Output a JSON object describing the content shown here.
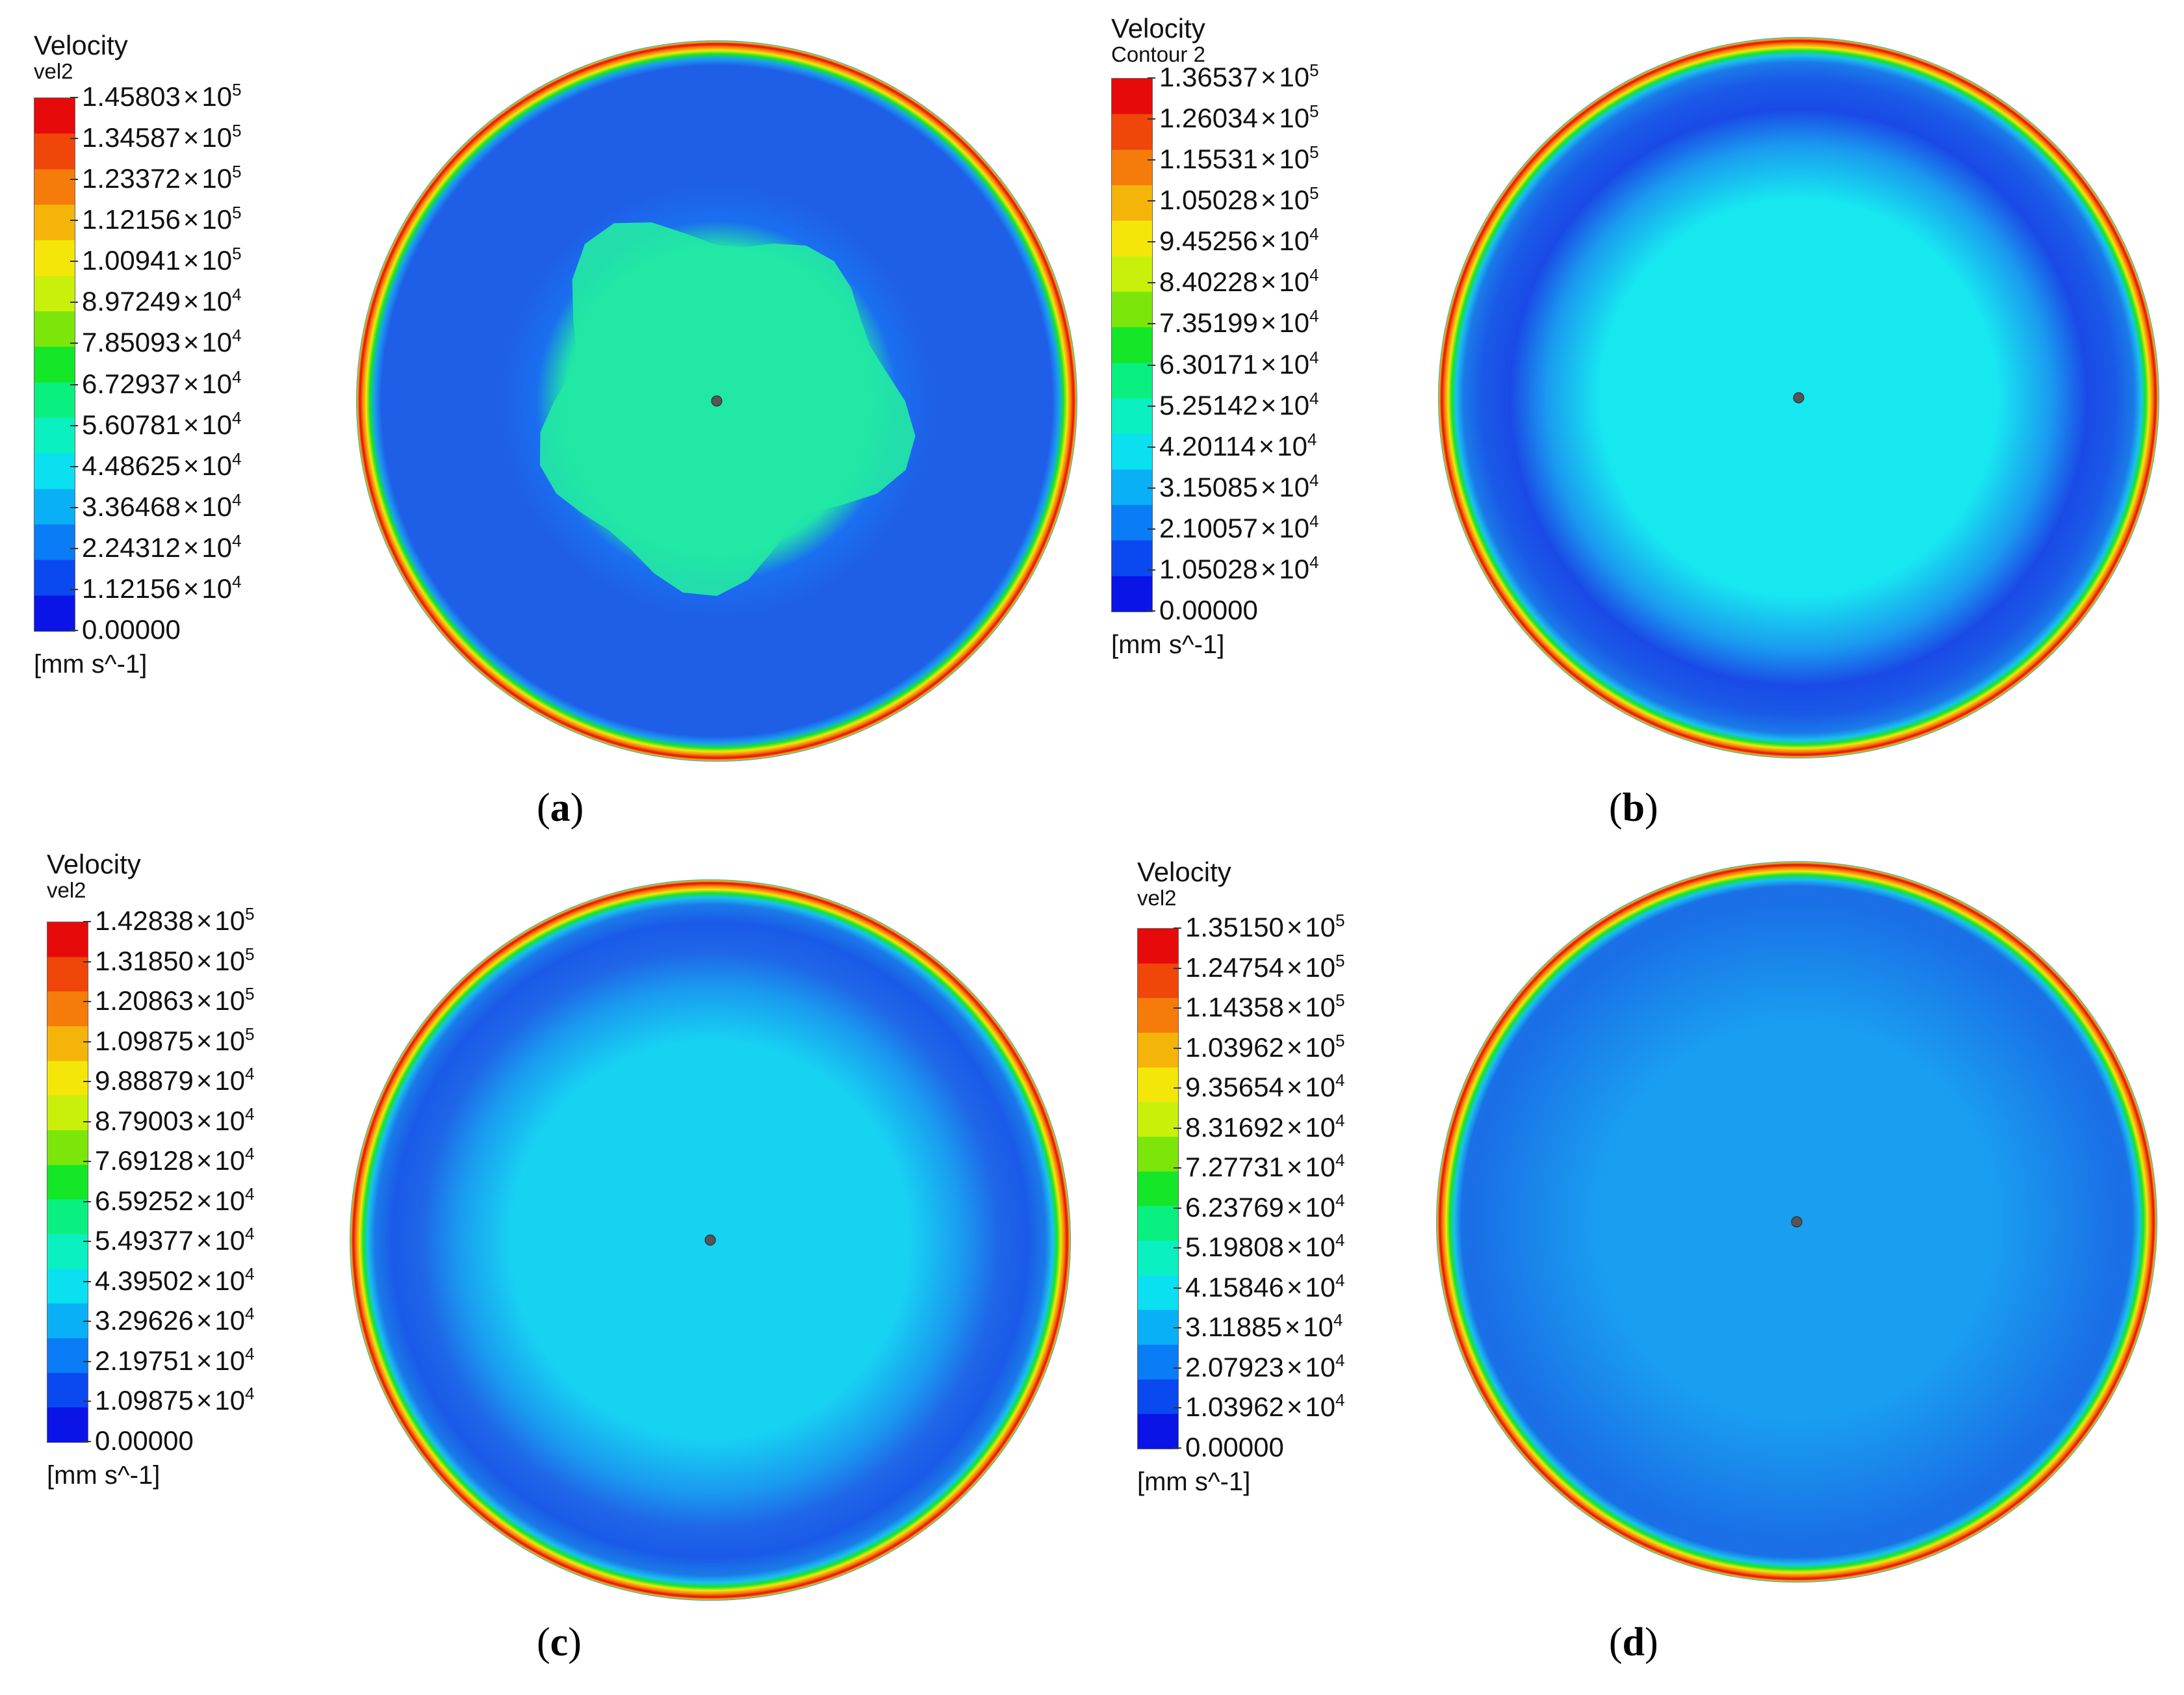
{
  "panels": [
    {
      "id": "a",
      "caption": "a",
      "legend": {
        "title": "Velocity",
        "subtitle": "vel2",
        "unit": "[mm s^-1]",
        "ticks": [
          {
            "mantissa": "1.45803",
            "exp": "5"
          },
          {
            "mantissa": "1.34587",
            "exp": "5"
          },
          {
            "mantissa": "1.23372",
            "exp": "5"
          },
          {
            "mantissa": "1.12156",
            "exp": "5"
          },
          {
            "mantissa": "1.00941",
            "exp": "5"
          },
          {
            "mantissa": "8.97249",
            "exp": "4"
          },
          {
            "mantissa": "7.85093",
            "exp": "4"
          },
          {
            "mantissa": "6.72937",
            "exp": "4"
          },
          {
            "mantissa": "5.60781",
            "exp": "4"
          },
          {
            "mantissa": "4.48625",
            "exp": "4"
          },
          {
            "mantissa": "3.36468",
            "exp": "4"
          },
          {
            "mantissa": "2.24312",
            "exp": "4"
          },
          {
            "mantissa": "1.12156",
            "exp": "4"
          },
          {
            "mantissa": "0.00000",
            "exp": ""
          }
        ]
      },
      "disc": {
        "center_color": "#1fe6a8",
        "mid_color": "#1f5fe8",
        "pattern": "blob"
      }
    },
    {
      "id": "b",
      "caption": "b",
      "legend": {
        "title": "Velocity",
        "subtitle": "Contour 2",
        "unit": "[mm s^-1]",
        "ticks": [
          {
            "mantissa": "1.36537",
            "exp": "5"
          },
          {
            "mantissa": "1.26034",
            "exp": "5"
          },
          {
            "mantissa": "1.15531",
            "exp": "5"
          },
          {
            "mantissa": "1.05028",
            "exp": "5"
          },
          {
            "mantissa": "9.45256",
            "exp": "4"
          },
          {
            "mantissa": "8.40228",
            "exp": "4"
          },
          {
            "mantissa": "7.35199",
            "exp": "4"
          },
          {
            "mantissa": "6.30171",
            "exp": "4"
          },
          {
            "mantissa": "5.25142",
            "exp": "4"
          },
          {
            "mantissa": "4.20114",
            "exp": "4"
          },
          {
            "mantissa": "3.15085",
            "exp": "4"
          },
          {
            "mantissa": "2.10057",
            "exp": "4"
          },
          {
            "mantissa": "1.05028",
            "exp": "4"
          },
          {
            "mantissa": "0.00000",
            "exp": ""
          }
        ]
      },
      "disc": {
        "center_color": "#17e8f0",
        "mid_color": "#1a4ae6",
        "pattern": "ring"
      }
    },
    {
      "id": "c",
      "caption": "c",
      "legend": {
        "title": "Velocity",
        "subtitle": "vel2",
        "unit": "[mm s^-1]",
        "ticks": [
          {
            "mantissa": "1.42838",
            "exp": "5"
          },
          {
            "mantissa": "1.31850",
            "exp": "5"
          },
          {
            "mantissa": "1.20863",
            "exp": "5"
          },
          {
            "mantissa": "1.09875",
            "exp": "5"
          },
          {
            "mantissa": "9.88879",
            "exp": "4"
          },
          {
            "mantissa": "8.79003",
            "exp": "4"
          },
          {
            "mantissa": "7.69128",
            "exp": "4"
          },
          {
            "mantissa": "6.59252",
            "exp": "4"
          },
          {
            "mantissa": "5.49377",
            "exp": "4"
          },
          {
            "mantissa": "4.39502",
            "exp": "4"
          },
          {
            "mantissa": "3.29626",
            "exp": "4"
          },
          {
            "mantissa": "2.19751",
            "exp": "4"
          },
          {
            "mantissa": "1.09875",
            "exp": "4"
          },
          {
            "mantissa": "0.00000",
            "exp": ""
          }
        ]
      },
      "disc": {
        "center_color": "#17d3f2",
        "mid_color": "#1f66e8",
        "pattern": "ring"
      }
    },
    {
      "id": "d",
      "caption": "d",
      "legend": {
        "title": "Velocity",
        "subtitle": "vel2",
        "unit": "[mm s^-1]",
        "ticks": [
          {
            "mantissa": "1.35150",
            "exp": "5"
          },
          {
            "mantissa": "1.24754",
            "exp": "5"
          },
          {
            "mantissa": "1.14358",
            "exp": "5"
          },
          {
            "mantissa": "1.03962",
            "exp": "5"
          },
          {
            "mantissa": "9.35654",
            "exp": "4"
          },
          {
            "mantissa": "8.31692",
            "exp": "4"
          },
          {
            "mantissa": "7.27731",
            "exp": "4"
          },
          {
            "mantissa": "6.23769",
            "exp": "4"
          },
          {
            "mantissa": "5.19808",
            "exp": "4"
          },
          {
            "mantissa": "4.15846",
            "exp": "4"
          },
          {
            "mantissa": "3.11885",
            "exp": "4"
          },
          {
            "mantissa": "2.07923",
            "exp": "4"
          },
          {
            "mantissa": "1.03962",
            "exp": "4"
          },
          {
            "mantissa": "0.00000",
            "exp": ""
          }
        ]
      },
      "disc": {
        "center_color": "#1a9ef0",
        "mid_color": "#1a7ae8",
        "pattern": "ring"
      }
    }
  ],
  "colors": {
    "scale": [
      "#0a14e6",
      "#0a48f0",
      "#0a7cf5",
      "#0ab0f5",
      "#0ae0f0",
      "#0af0c0",
      "#0af080",
      "#14e628",
      "#7ce60a",
      "#c8f00a",
      "#f5e60a",
      "#f5b40a",
      "#f57c0a",
      "#f0460a",
      "#e60a0a"
    ]
  }
}
